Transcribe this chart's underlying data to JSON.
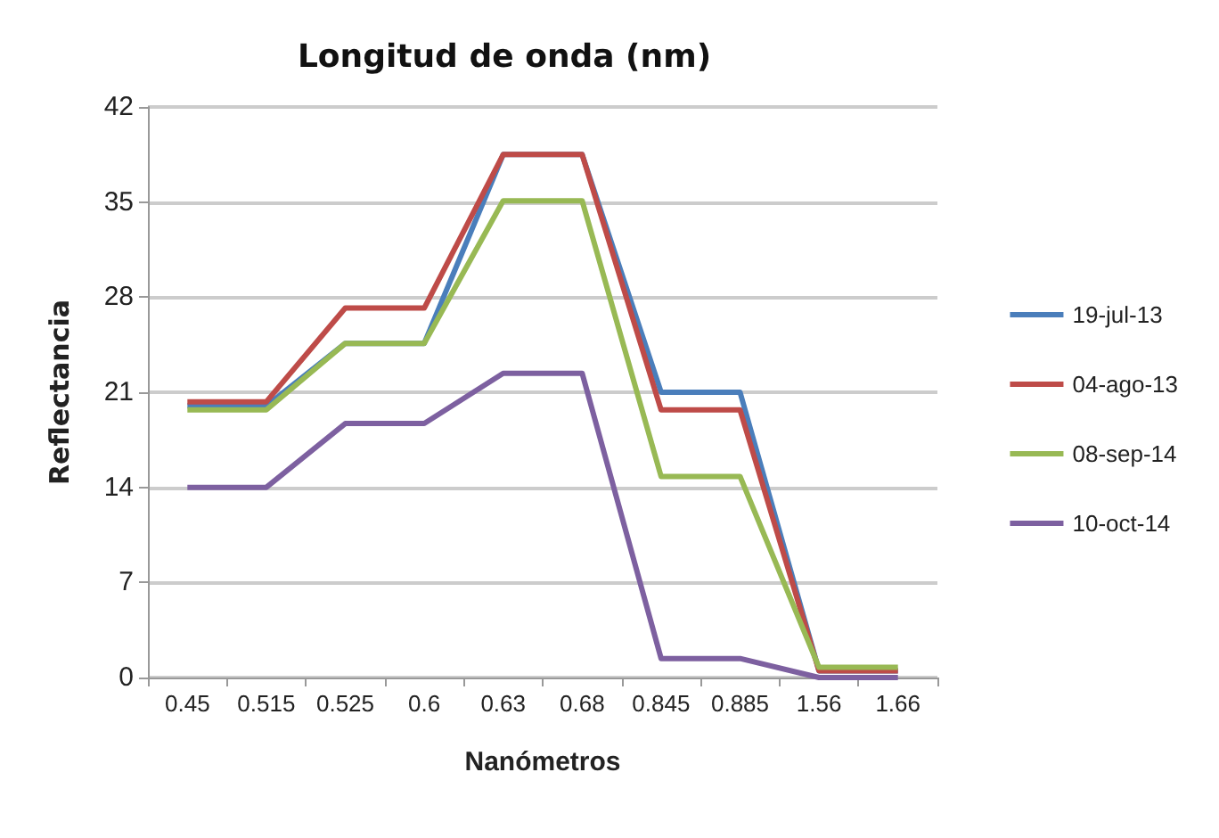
{
  "chart_data": {
    "type": "line",
    "title": "Longitud de onda (nm)",
    "xlabel": "Nanómetros",
    "ylabel": "Reflectancia",
    "categories": [
      "0.45",
      "0.515",
      "0.525",
      "0.6",
      "0.63",
      "0.68",
      "0.845",
      "0.885",
      "1.56",
      "1.66"
    ],
    "series": [
      {
        "name": "19-jul-13",
        "color": "#4a7ebb",
        "values": [
          20,
          20,
          24.6,
          24.6,
          38.5,
          38.5,
          21,
          21,
          0.5,
          0.5
        ]
      },
      {
        "name": "04-ago-13",
        "color": "#be4b48",
        "values": [
          20.3,
          20.3,
          27.2,
          27.2,
          38.5,
          38.5,
          19.7,
          19.7,
          0.5,
          0.5
        ]
      },
      {
        "name": "08-sep-14",
        "color": "#98b954",
        "values": [
          19.7,
          19.7,
          24.6,
          24.6,
          35.1,
          35.1,
          14.8,
          14.8,
          0.75,
          0.75
        ]
      },
      {
        "name": "10-oct-14",
        "color": "#7d60a0",
        "values": [
          14,
          14,
          18.7,
          18.7,
          22.4,
          22.4,
          1.4,
          1.4,
          0,
          0
        ]
      }
    ],
    "ylim": [
      0,
      42
    ],
    "yticks": [
      0,
      7,
      14,
      21,
      28,
      35,
      42
    ],
    "grid": "y",
    "legend": "right",
    "marker": "none",
    "line_style": "solid"
  }
}
